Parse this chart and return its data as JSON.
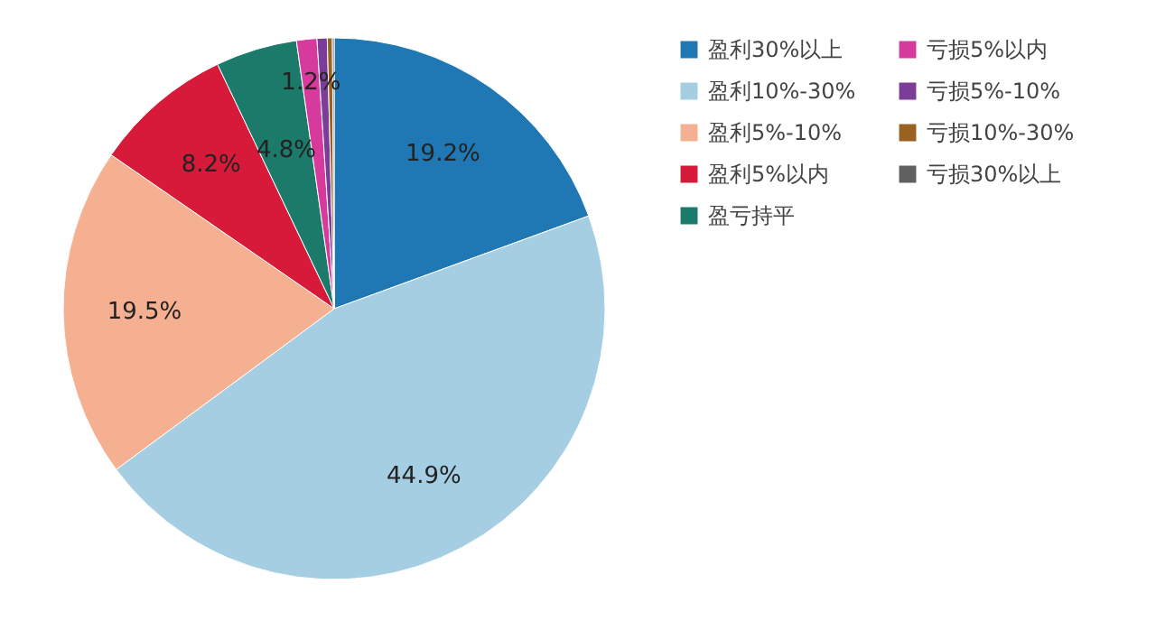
{
  "chart_data": {
    "type": "pie",
    "categories": [
      "盈利30%以上",
      "盈利10%-30%",
      "盈利5%-10%",
      "盈利5%以内",
      "盈亏持平",
      "亏损5%以内",
      "亏损5%-10%",
      "亏损10%-30%",
      "亏损30%以上"
    ],
    "values": [
      19.2,
      44.9,
      19.5,
      8.2,
      4.8,
      1.2,
      0.6,
      0.3,
      0.1
    ],
    "value_labels": [
      "19.2%",
      "44.9%",
      "19.5%",
      "8.2%",
      "4.8%",
      "1.2%",
      null,
      null,
      null
    ],
    "colors": [
      "#1f78b4",
      "#a6cee3",
      "#f4b090",
      "#d7193a",
      "#1b7a6a",
      "#d63a9c",
      "#7b3d97",
      "#9a6221",
      "#606060"
    ],
    "legend": "right"
  }
}
